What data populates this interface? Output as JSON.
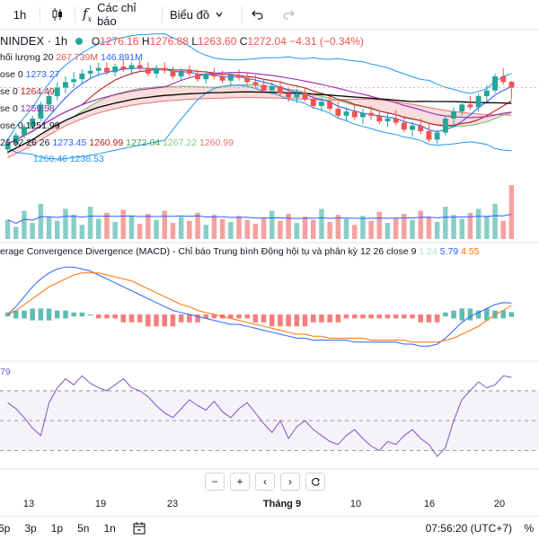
{
  "toolbar": {
    "interval": "1h",
    "indicators_label": "Các chỉ báo",
    "chart_type_label": "Biểu đồ",
    "undo_icon": "undo-icon",
    "redo_icon": "redo-icon"
  },
  "main_legend": {
    "symbol": "NINDEX · 1h",
    "o_label": "O",
    "o": "1276.16",
    "h_label": "H",
    "h": "1276.88",
    "l_label": "L",
    "l": "1263.60",
    "c_label": "C",
    "c": "1272.04",
    "change": "−4.31 (−0.34%)",
    "volume_label": "hối lượng 20",
    "volume_value": "267.739M",
    "volume_ma": "146.891M",
    "ma1_label": "ose 0",
    "ma1_value": "1273.27",
    "ma2_label": "se 0",
    "ma2_value": "1264.49",
    "ma3_label": "se 0",
    "ma3_value": "1259.58",
    "ma4_label": "ose 0",
    "ma4_value": "1251.99",
    "ichimoku_label": "26 52 26 26",
    "ichimoku_values": [
      "1273.45",
      "1260.99",
      "1272.04",
      "1267.22",
      "1260.99"
    ],
    "bb_values": [
      "1260.46",
      "1238.53"
    ]
  },
  "macd_legend": {
    "title": "erage Convergence Divergence (MACD) - Chỉ báo Trung bình Động hội tụ và phân kỳ 12 26 close 9",
    "hist": "1.24",
    "macd": "5.79",
    "signal": "4.55"
  },
  "rsi_legend": {
    "value": "79"
  },
  "x_labels": [
    "13",
    "19",
    "23",
    "Tháng 9",
    "10",
    "16",
    "20"
  ],
  "zoom_controls": [
    "−",
    "+",
    "‹",
    "›"
  ],
  "bottombar": {
    "ranges": [
      "6p",
      "3p",
      "1p",
      "5n",
      "1n"
    ],
    "clock": "07:56:20 (UTC+7)",
    "percent": "%"
  },
  "colors": {
    "up": "#26a69a",
    "down": "#ef5350",
    "macd_line": "#2962ff",
    "signal_line": "#ff6d00",
    "rsi_line": "#7e57c2",
    "rsi_band": "#7e57c2",
    "bb_line": "#2196f3",
    "ma_dark": "#000000",
    "kumo_green": "#a5d6a7",
    "kumo_red": "#ef9a9a"
  },
  "chart_data": [
    {
      "type": "candlestick",
      "title": "NINDEX · 1h",
      "ohlc": [
        [
          1228,
          1236,
          1225,
          1232
        ],
        [
          1232,
          1240,
          1230,
          1238
        ],
        [
          1238,
          1246,
          1236,
          1244
        ],
        [
          1244,
          1252,
          1242,
          1250
        ],
        [
          1250,
          1262,
          1248,
          1260
        ],
        [
          1260,
          1270,
          1257,
          1266
        ],
        [
          1266,
          1276,
          1263,
          1272
        ],
        [
          1272,
          1280,
          1268,
          1276
        ],
        [
          1276,
          1283,
          1272,
          1278
        ],
        [
          1278,
          1285,
          1275,
          1282
        ],
        [
          1282,
          1288,
          1278,
          1284
        ],
        [
          1284,
          1290,
          1280,
          1286
        ],
        [
          1286,
          1290,
          1281,
          1283
        ],
        [
          1283,
          1289,
          1280,
          1287
        ],
        [
          1287,
          1292,
          1283,
          1285
        ],
        [
          1285,
          1290,
          1281,
          1288
        ],
        [
          1288,
          1292,
          1283,
          1286
        ],
        [
          1286,
          1290,
          1280,
          1282
        ],
        [
          1282,
          1288,
          1279,
          1286
        ],
        [
          1286,
          1290,
          1282,
          1284
        ],
        [
          1284,
          1287,
          1278,
          1280
        ],
        [
          1280,
          1286,
          1277,
          1284
        ],
        [
          1284,
          1288,
          1280,
          1282
        ],
        [
          1282,
          1285,
          1276,
          1278
        ],
        [
          1278,
          1284,
          1275,
          1282
        ],
        [
          1282,
          1286,
          1278,
          1280
        ],
        [
          1280,
          1284,
          1275,
          1277
        ],
        [
          1277,
          1283,
          1274,
          1281
        ],
        [
          1281,
          1285,
          1277,
          1279
        ],
        [
          1279,
          1283,
          1274,
          1276
        ],
        [
          1276,
          1281,
          1272,
          1274
        ],
        [
          1274,
          1278,
          1268,
          1270
        ],
        [
          1270,
          1276,
          1267,
          1273
        ],
        [
          1273,
          1277,
          1266,
          1268
        ],
        [
          1268,
          1272,
          1262,
          1265
        ],
        [
          1265,
          1271,
          1261,
          1268
        ],
        [
          1268,
          1272,
          1262,
          1264
        ],
        [
          1264,
          1268,
          1257,
          1259
        ],
        [
          1259,
          1265,
          1255,
          1262
        ],
        [
          1262,
          1266,
          1255,
          1257
        ],
        [
          1257,
          1262,
          1250,
          1252
        ],
        [
          1252,
          1258,
          1248,
          1255
        ],
        [
          1255,
          1260,
          1249,
          1251
        ],
        [
          1251,
          1257,
          1246,
          1254
        ],
        [
          1254,
          1259,
          1249,
          1252
        ],
        [
          1252,
          1256,
          1246,
          1248
        ],
        [
          1248,
          1254,
          1244,
          1250
        ],
        [
          1250,
          1256,
          1245,
          1247
        ],
        [
          1247,
          1252,
          1240,
          1242
        ],
        [
          1242,
          1248,
          1237,
          1245
        ],
        [
          1245,
          1250,
          1239,
          1241
        ],
        [
          1241,
          1246,
          1233,
          1235
        ],
        [
          1235,
          1242,
          1232,
          1240
        ],
        [
          1240,
          1252,
          1238,
          1250
        ],
        [
          1250,
          1258,
          1246,
          1255
        ],
        [
          1255,
          1262,
          1252,
          1260
        ],
        [
          1260,
          1266,
          1256,
          1258
        ],
        [
          1258,
          1268,
          1255,
          1266
        ],
        [
          1266,
          1274,
          1262,
          1270
        ],
        [
          1270,
          1282,
          1268,
          1280
        ],
        [
          1280,
          1286,
          1274,
          1276
        ],
        [
          1276.16,
          1276.88,
          1263.6,
          1272.04
        ]
      ]
    },
    {
      "type": "bar",
      "title": "hối lượng 20",
      "values": [
        95,
        60,
        140,
        80,
        175,
        110,
        90,
        150,
        120,
        70,
        160,
        100,
        130,
        85,
        145,
        115,
        75,
        125,
        95,
        140,
        80,
        110,
        90,
        130,
        70,
        120,
        100,
        85,
        115,
        95,
        75,
        105,
        140,
        90,
        125,
        80,
        110,
        95,
        150,
        85,
        120,
        100,
        70,
        115,
        90,
        135,
        80,
        105,
        125,
        95,
        140,
        110,
        85,
        160,
        120,
        100,
        130,
        150,
        115,
        175,
        90,
        267.739
      ],
      "ma": 146.891
    },
    {
      "type": "bar_line",
      "title": "MACD 12 26 close 9",
      "hist": [
        1,
        2,
        2,
        3,
        3,
        3,
        2,
        2,
        1,
        1,
        0,
        -1,
        -1,
        -1,
        -2,
        -2,
        -2,
        -3,
        -3,
        -3,
        -3,
        -2,
        -2,
        -2,
        -1,
        -1,
        -1,
        -1,
        -1,
        -1,
        -2,
        -2,
        -3,
        -3,
        -3,
        -3,
        -3,
        -2,
        -2,
        -2,
        -2,
        -1,
        -1,
        -1,
        -1,
        -1,
        -1,
        -1,
        -1,
        -1,
        -2,
        -2,
        -2,
        1,
        2,
        3,
        3,
        2,
        3,
        2,
        2,
        1.24
      ],
      "macd": [
        0,
        4,
        9,
        14,
        18,
        21,
        23,
        24,
        24,
        23,
        22,
        20,
        18,
        16,
        14,
        12,
        10,
        8,
        6,
        4,
        2,
        1,
        0,
        -1,
        -2,
        -3,
        -4,
        -5,
        -5,
        -6,
        -7,
        -8,
        -9,
        -10,
        -11,
        -12,
        -12,
        -13,
        -13,
        -13,
        -13,
        -13,
        -14,
        -14,
        -14,
        -14,
        -14,
        -14,
        -15,
        -15,
        -16,
        -16,
        -15,
        -12,
        -8,
        -4,
        -1,
        1,
        3,
        5,
        6,
        5.79
      ],
      "signal": [
        0,
        2,
        5,
        8,
        11,
        14,
        16,
        18,
        20,
        21,
        21,
        21,
        20,
        19,
        18,
        17,
        15,
        13,
        11,
        9,
        7,
        5,
        4,
        2,
        1,
        0,
        -1,
        -2,
        -3,
        -4,
        -5,
        -6,
        -7,
        -8,
        -9,
        -10,
        -10,
        -11,
        -11,
        -12,
        -12,
        -12,
        -12,
        -12,
        -13,
        -13,
        -13,
        -13,
        -13,
        -14,
        -14,
        -14,
        -14,
        -13,
        -12,
        -10,
        -8,
        -6,
        -3,
        0,
        2,
        4.55
      ]
    },
    {
      "type": "line",
      "title": "RSI",
      "ylim": [
        20,
        85
      ],
      "bands": [
        70,
        50,
        30
      ],
      "values": [
        62,
        58,
        52,
        45,
        40,
        62,
        72,
        78,
        74,
        80,
        75,
        72,
        70,
        74,
        78,
        72,
        70,
        66,
        60,
        55,
        52,
        58,
        64,
        60,
        57,
        63,
        56,
        52,
        58,
        62,
        55,
        48,
        42,
        50,
        38,
        46,
        50,
        44,
        40,
        36,
        34,
        40,
        44,
        38,
        33,
        30,
        36,
        34,
        40,
        44,
        38,
        34,
        26,
        32,
        50,
        64,
        70,
        76,
        72,
        74,
        80,
        79
      ]
    }
  ]
}
